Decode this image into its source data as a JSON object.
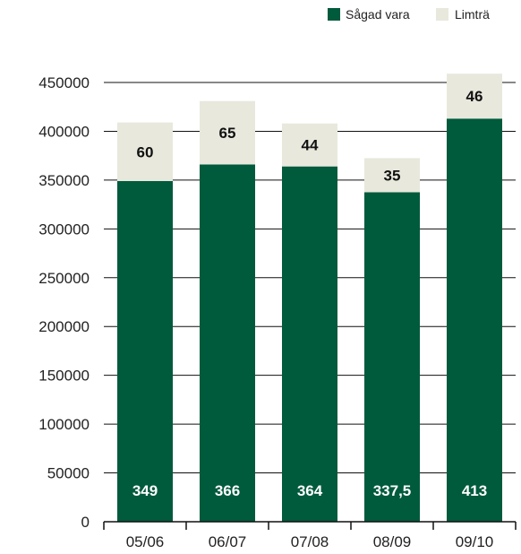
{
  "colors": {
    "sagad": "#005A3C",
    "limtra": "#E8E8DD",
    "grid": "#111111",
    "label_on_dark": "#ffffff",
    "label_on_light": "#111111"
  },
  "chart_data": {
    "type": "bar",
    "stacked": true,
    "categories": [
      "05/06",
      "06/07",
      "07/08",
      "08/09",
      "09/10"
    ],
    "series": [
      {
        "name": "Sågad vara",
        "values": [
          349000,
          366000,
          364000,
          337500,
          413000
        ],
        "labels": [
          "349",
          "366",
          "364",
          "337,5",
          "413"
        ]
      },
      {
        "name": "Limträ",
        "values": [
          60000,
          65000,
          44000,
          35000,
          46000
        ],
        "labels": [
          "60",
          "65",
          "44",
          "35",
          "46"
        ]
      }
    ],
    "title": "",
    "xlabel": "",
    "ylabel": "",
    "ylim": [
      0,
      450000
    ],
    "yticks": [
      0,
      50000,
      100000,
      150000,
      200000,
      250000,
      300000,
      350000,
      400000,
      450000
    ],
    "grid": true,
    "legend_position": "top-right"
  }
}
